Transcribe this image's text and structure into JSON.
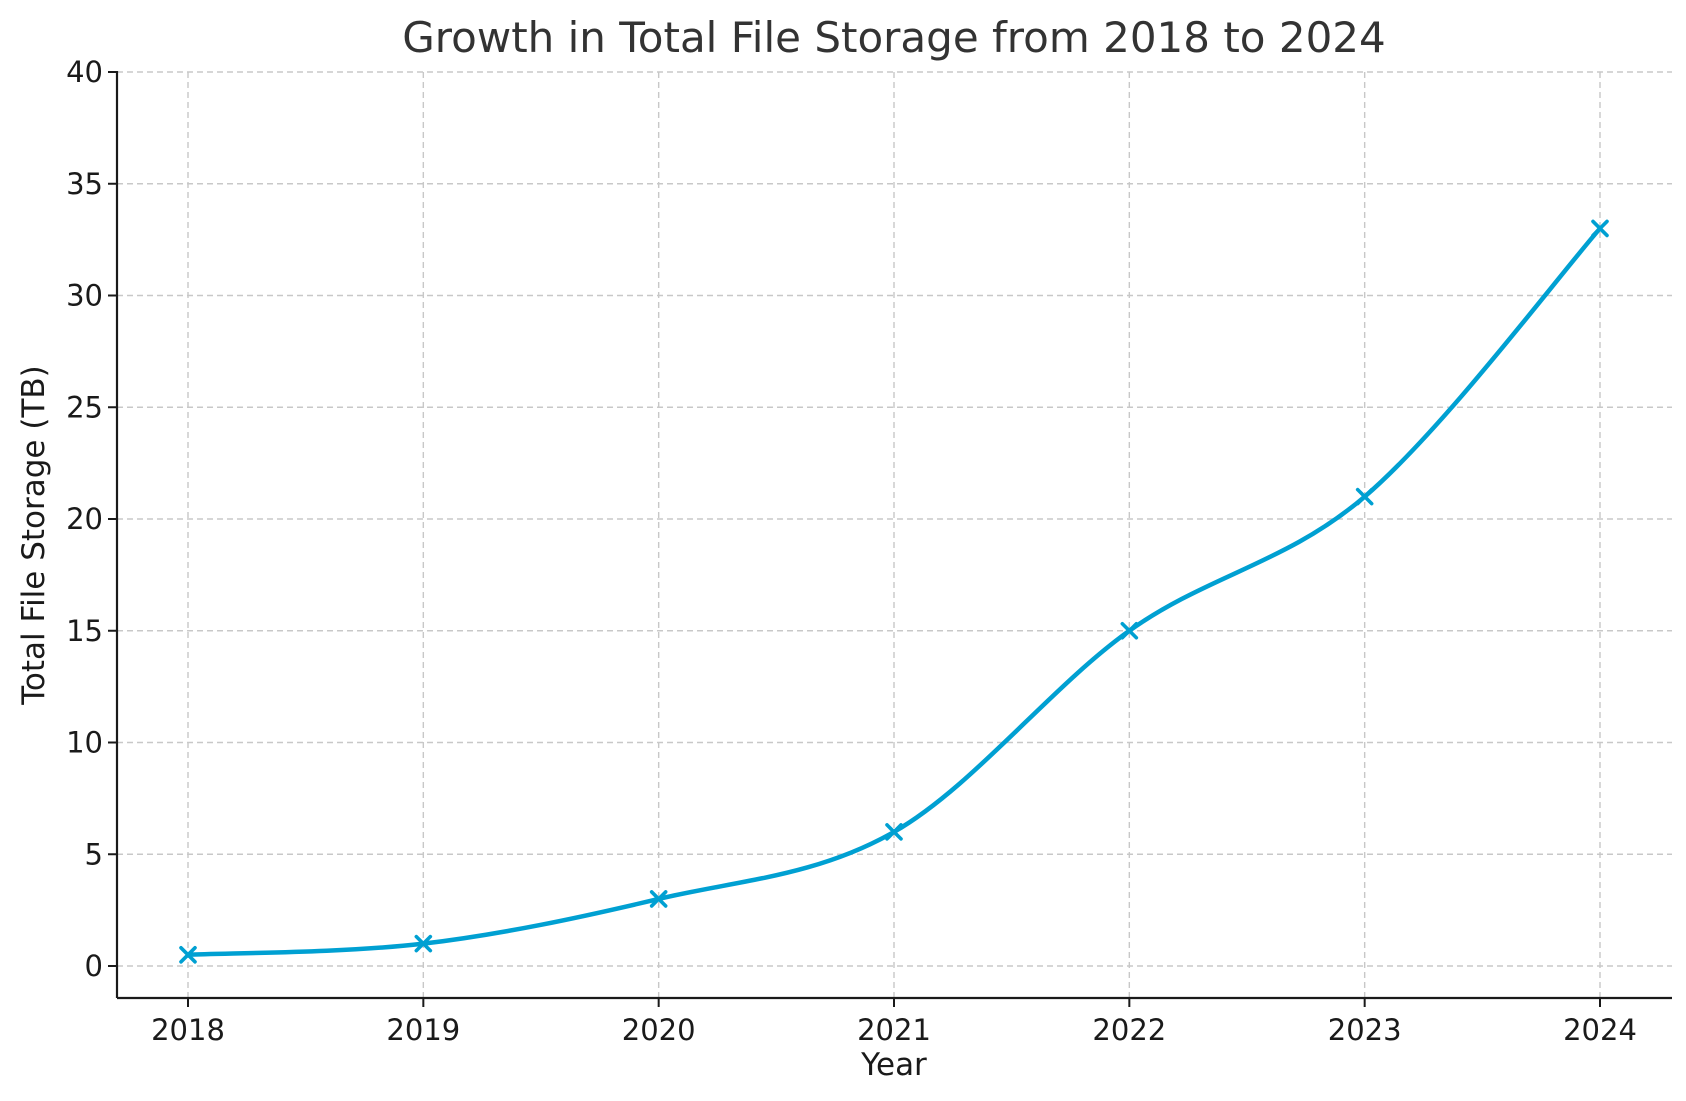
{
  "chart_data": {
    "type": "line",
    "title": "Growth in Total File Storage from 2018 to 2024",
    "xlabel": "Year",
    "ylabel": "Total File Storage (TB)",
    "x": [
      2018,
      2019,
      2020,
      2021,
      2022,
      2023,
      2024
    ],
    "x_tick_labels": [
      "2018",
      "2019",
      "2020",
      "2021",
      "2022",
      "2023",
      "2024"
    ],
    "series": [
      {
        "values": [
          0.5,
          1,
          3,
          6,
          15,
          21,
          33
        ],
        "color": "#00a0d2",
        "marker": "x",
        "smooth": true
      }
    ],
    "ylim": [
      0,
      40
    ],
    "y_ticks": [
      0,
      5,
      10,
      15,
      20,
      25,
      30,
      35,
      40
    ],
    "y_tick_labels": [
      "0",
      "5",
      "10",
      "15",
      "20",
      "25",
      "30",
      "35",
      "40"
    ],
    "grid": true,
    "legend": false
  }
}
